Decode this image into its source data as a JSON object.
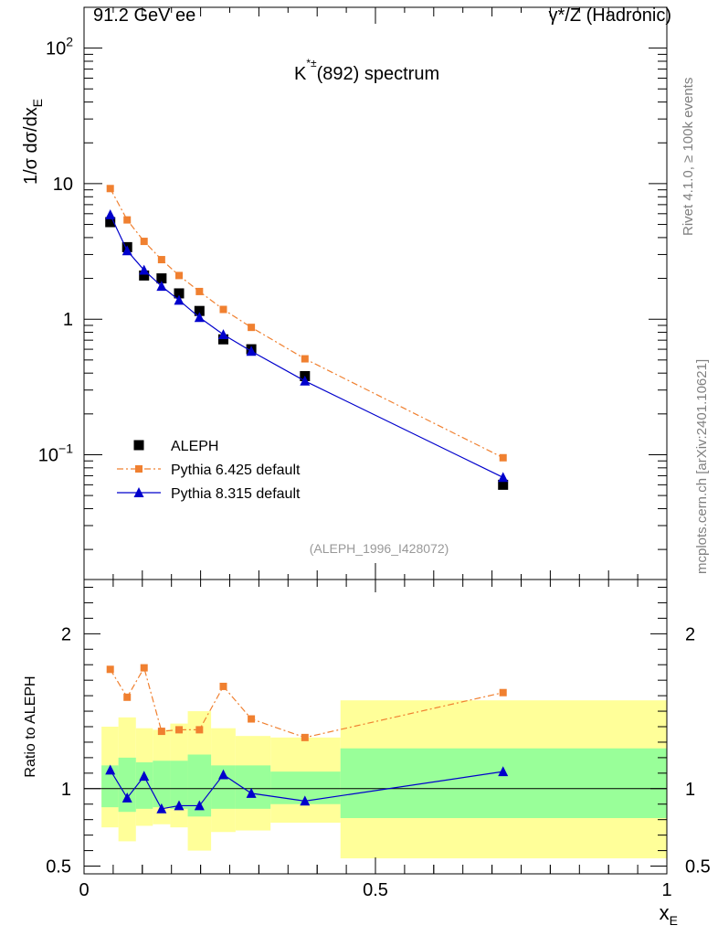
{
  "header": {
    "left": "91.2 GeV ee",
    "right": "γ*/Z (Hadronic)"
  },
  "side_text": {
    "top": "Rivet 4.1.0, ≥ 100k events",
    "bottom": "mcplots.cern.ch [arXiv:2401.10621]"
  },
  "colors": {
    "data": "#000000",
    "pythia6": "#f08030",
    "pythia8": "#0000cc",
    "band_inner": "#99ff99",
    "band_outer": "#ffff99"
  },
  "chart_data": [
    {
      "type": "scatter",
      "title_main": "K",
      "title_sup": "*±",
      "title_rest": "(892) spectrum",
      "ylabel_prefix": "1/σ  dσ/dx",
      "ylabel_sub": "E",
      "yscale": "log",
      "ylim": [
        0.012,
        200
      ],
      "xlim": [
        0,
        1
      ],
      "analysis_label": "(ALEPH_1996_I428072)",
      "y_tick_labels": [
        {
          "value": 0.1,
          "base": "10",
          "exp": "−1"
        },
        {
          "value": 1,
          "base": "1",
          "exp": ""
        },
        {
          "value": 10,
          "base": "10",
          "exp": ""
        },
        {
          "value": 100,
          "base": "10",
          "exp": "2"
        }
      ],
      "legend_position": "lower-left",
      "x": [
        0.045,
        0.074,
        0.103,
        0.133,
        0.163,
        0.198,
        0.239,
        0.287,
        0.379,
        0.719
      ],
      "series": [
        {
          "name": "ALEPH",
          "marker": "square",
          "values": [
            5.2,
            3.4,
            2.1,
            2.0,
            1.55,
            1.15,
            0.71,
            0.6,
            0.38,
            0.06
          ]
        },
        {
          "name": "Pythia 6.425 default",
          "marker": "square-small",
          "line": "dash-dot",
          "values": [
            9.2,
            5.4,
            3.75,
            2.75,
            2.1,
            1.6,
            1.18,
            0.87,
            0.51,
            0.095
          ]
        },
        {
          "name": "Pythia 8.315 default",
          "marker": "triangle",
          "line": "solid",
          "values": [
            5.9,
            3.2,
            2.3,
            1.75,
            1.38,
            1.03,
            0.77,
            0.58,
            0.35,
            0.068
          ]
        }
      ]
    },
    {
      "type": "line",
      "ylabel": "Ratio to ALEPH",
      "xlabel_main": "x",
      "xlabel_sub": "E",
      "ylim": [
        0.45,
        2.35
      ],
      "xlim": [
        0,
        1
      ],
      "x_tick_labels": [
        {
          "value": 0,
          "label": "0"
        },
        {
          "value": 0.5,
          "label": "0.5"
        },
        {
          "value": 1,
          "label": "1"
        }
      ],
      "y_tick_labels": [
        {
          "value": 0.5,
          "label": "0.5"
        },
        {
          "value": 1,
          "label": "1"
        },
        {
          "value": 2,
          "label": "2"
        }
      ],
      "uncertainty_bins": [
        {
          "x0": 0.03,
          "x1": 0.059,
          "inner": [
            0.88,
            1.15
          ],
          "outer": [
            0.75,
            1.4
          ]
        },
        {
          "x0": 0.059,
          "x1": 0.089,
          "inner": [
            0.85,
            1.2
          ],
          "outer": [
            0.66,
            1.46
          ]
        },
        {
          "x0": 0.089,
          "x1": 0.118,
          "inner": [
            0.87,
            1.17
          ],
          "outer": [
            0.76,
            1.39
          ]
        },
        {
          "x0": 0.118,
          "x1": 0.148,
          "inner": [
            0.88,
            1.18
          ],
          "outer": [
            0.77,
            1.38
          ]
        },
        {
          "x0": 0.148,
          "x1": 0.178,
          "inner": [
            0.87,
            1.18
          ],
          "outer": [
            0.75,
            1.42
          ]
        },
        {
          "x0": 0.178,
          "x1": 0.218,
          "inner": [
            0.82,
            1.22
          ],
          "outer": [
            0.6,
            1.5
          ]
        },
        {
          "x0": 0.218,
          "x1": 0.26,
          "inner": [
            0.87,
            1.15
          ],
          "outer": [
            0.72,
            1.39
          ]
        },
        {
          "x0": 0.26,
          "x1": 0.32,
          "inner": [
            0.87,
            1.15
          ],
          "outer": [
            0.73,
            1.34
          ]
        },
        {
          "x0": 0.32,
          "x1": 0.44,
          "inner": [
            0.9,
            1.11
          ],
          "outer": [
            0.78,
            1.33
          ]
        },
        {
          "x0": 0.44,
          "x1": 1.0,
          "inner": [
            0.81,
            1.26
          ],
          "outer": [
            0.55,
            1.57
          ]
        }
      ],
      "series": [
        {
          "name": "Pythia 6.425 default",
          "marker": "square-small",
          "line": "dash-dot",
          "values": [
            1.77,
            1.59,
            1.78,
            1.37,
            1.38,
            1.38,
            1.66,
            1.45,
            1.33,
            1.62
          ]
        },
        {
          "name": "Pythia 8.315 default",
          "marker": "triangle",
          "line": "solid",
          "values": [
            1.12,
            0.94,
            1.08,
            0.87,
            0.89,
            0.89,
            1.09,
            0.97,
            0.92,
            1.11
          ]
        }
      ]
    }
  ]
}
